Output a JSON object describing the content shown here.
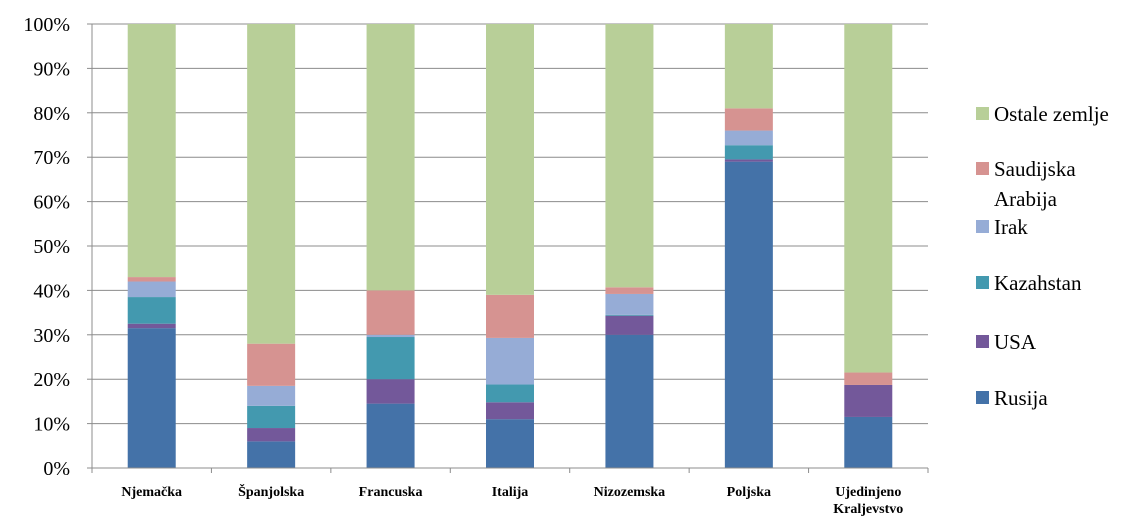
{
  "chart_data": {
    "type": "bar",
    "stacked": "100%",
    "categories": [
      "Njemačka",
      "Španjolska",
      "Francuska",
      "Italija",
      "Nizozemska",
      "Poljska",
      "Ujedinjeno Kraljevstvo"
    ],
    "series": [
      {
        "name": "Rusija",
        "color": "#4472A8",
        "values": [
          31.5,
          6,
          14.5,
          11,
          30,
          69,
          11.5
        ]
      },
      {
        "name": "USA",
        "color": "#73589A",
        "values": [
          1,
          3,
          5.5,
          3.8,
          4.3,
          0.5,
          7.2
        ]
      },
      {
        "name": "Kazahstan",
        "color": "#4399AF",
        "values": [
          6,
          5,
          9.5,
          4,
          0.2,
          3.2,
          0
        ]
      },
      {
        "name": "Irak",
        "color": "#96ACD6",
        "values": [
          3.5,
          4.5,
          0.5,
          10.5,
          4.7,
          3.3,
          0
        ]
      },
      {
        "name": "Saudijska Arabija",
        "color": "#D69391",
        "values": [
          1,
          9.5,
          10,
          9.7,
          1.5,
          5,
          2.8
        ]
      },
      {
        "name": "Ostale zemlje",
        "color": "#B8CF98",
        "values": [
          57,
          72,
          60,
          61,
          59.3,
          19,
          78.5
        ]
      }
    ],
    "yticks": [
      "0%",
      "10%",
      "20%",
      "30%",
      "40%",
      "50%",
      "60%",
      "70%",
      "80%",
      "90%",
      "100%"
    ],
    "ylim": [
      0,
      100
    ],
    "grid": true,
    "legend_position": "right",
    "legend_order": [
      "Ostale zemlje",
      "Saudijska Arabija",
      "Irak",
      "Kazahstan",
      "USA",
      "Rusija"
    ]
  }
}
